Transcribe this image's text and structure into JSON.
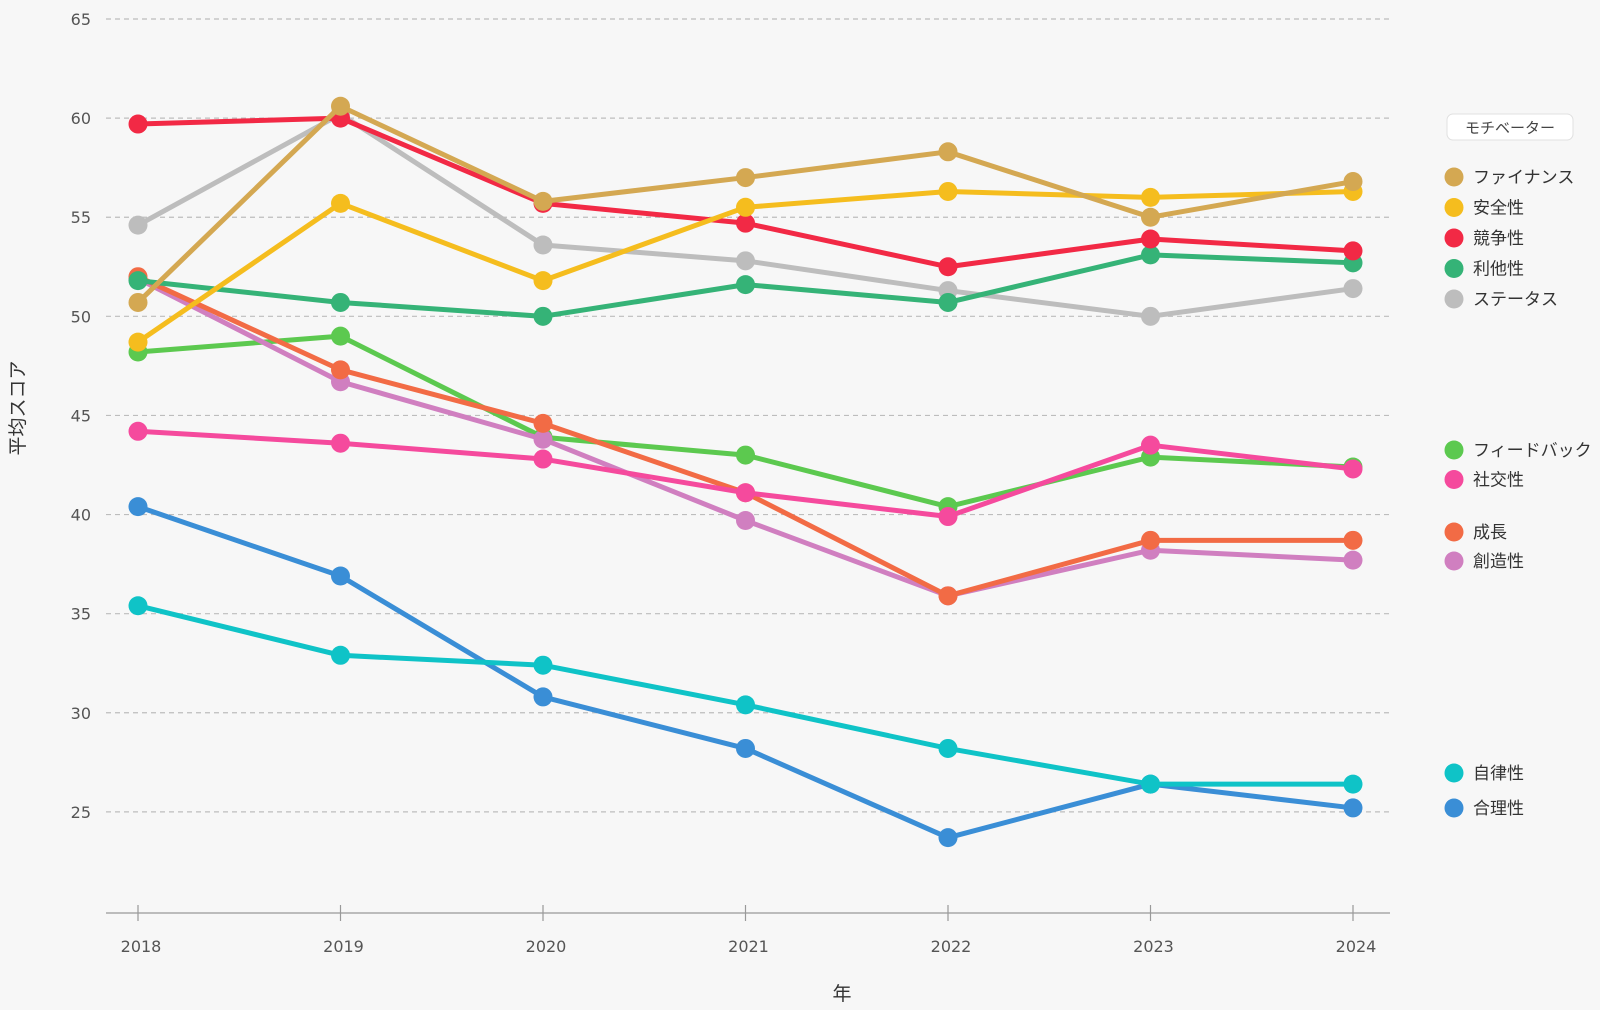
{
  "chart_data": {
    "type": "line",
    "xlabel": "年",
    "ylabel": "平均スコア",
    "x": [
      "2018",
      "2019",
      "2020",
      "2021",
      "2022",
      "2023",
      "2024"
    ],
    "ylim": [
      20,
      65
    ],
    "yticks": [
      25,
      30,
      35,
      40,
      45,
      50,
      55,
      60,
      65
    ],
    "grid": "horizontal dashed",
    "legend": {
      "title": "モチベーター",
      "placement": "right",
      "groups": [
        [
          "ファイナンス",
          "安全性",
          "競争性",
          "利他性",
          "ステータス"
        ],
        [
          "フィードバック",
          "社交性"
        ],
        [
          "成長",
          "創造性"
        ],
        [
          "自律性",
          "合理性"
        ]
      ]
    },
    "series": [
      {
        "name": "ステータス",
        "color": "#bdbdbd",
        "values": [
          54.6,
          60.2,
          53.6,
          52.8,
          51.3,
          50.0,
          51.4
        ]
      },
      {
        "name": "フィードバック",
        "color": "#5cc94f",
        "values": [
          48.2,
          49.0,
          43.9,
          43.0,
          40.4,
          42.9,
          42.4
        ]
      },
      {
        "name": "創造性",
        "color": "#d07fc0",
        "values": [
          51.9,
          46.7,
          43.8,
          39.7,
          35.9,
          38.2,
          37.7
        ]
      },
      {
        "name": "成長",
        "color": "#f26b45",
        "values": [
          52.0,
          47.3,
          44.6,
          41.1,
          35.9,
          38.7,
          38.7
        ]
      },
      {
        "name": "社交性",
        "color": "#f54a9d",
        "values": [
          44.2,
          43.6,
          42.8,
          41.1,
          39.9,
          43.5,
          42.3
        ]
      },
      {
        "name": "合理性",
        "color": "#3a8ed6",
        "values": [
          40.4,
          36.9,
          30.8,
          28.2,
          23.7,
          26.4,
          25.2
        ]
      },
      {
        "name": "自律性",
        "color": "#0fc3c7",
        "values": [
          35.4,
          32.9,
          32.4,
          30.4,
          28.2,
          26.4,
          26.4
        ]
      },
      {
        "name": "利他性",
        "color": "#35b377",
        "values": [
          51.8,
          50.7,
          50.0,
          51.6,
          50.7,
          53.1,
          52.7
        ]
      },
      {
        "name": "競争性",
        "color": "#f22945",
        "values": [
          59.7,
          60.0,
          55.7,
          54.7,
          52.5,
          53.9,
          53.3
        ]
      },
      {
        "name": "安全性",
        "color": "#f5bd1e",
        "values": [
          48.7,
          55.7,
          51.8,
          55.5,
          56.3,
          56.0,
          56.3
        ]
      },
      {
        "name": "ファイナンス",
        "color": "#d4a852",
        "values": [
          50.7,
          60.6,
          55.8,
          57.0,
          58.3,
          55.0,
          56.8
        ]
      }
    ]
  }
}
